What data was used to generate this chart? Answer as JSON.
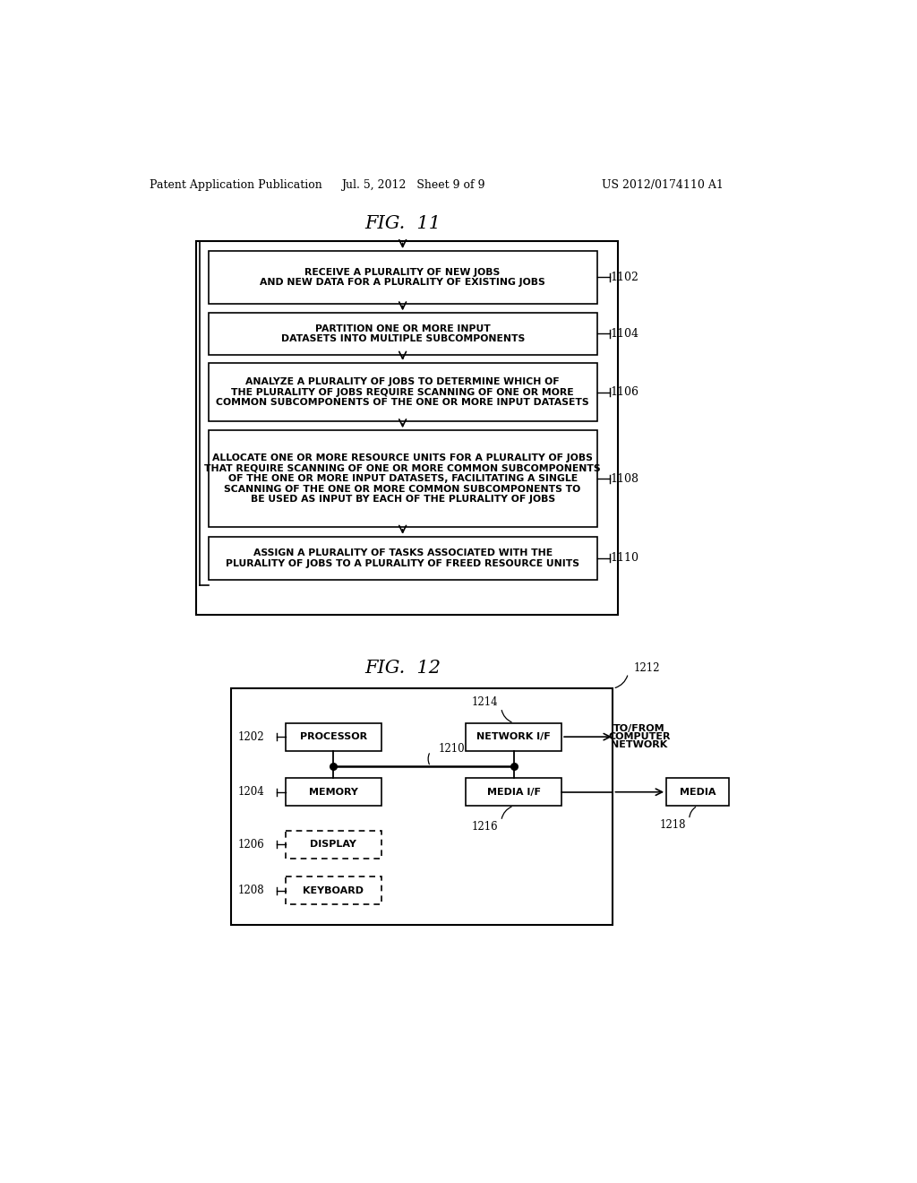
{
  "bg_color": "#ffffff",
  "header_left": "Patent Application Publication",
  "header_mid": "Jul. 5, 2012   Sheet 9 of 9",
  "header_right": "US 2012/0174110 A1",
  "fig11_title": "FIG.  11",
  "fig12_title": "FIG.  12",
  "box_labels": [
    "RECEIVE A PLURALITY OF NEW JOBS\nAND NEW DATA FOR A PLURALITY OF EXISTING JOBS",
    "PARTITION ONE OR MORE INPUT\nDATASETS INTO MULTIPLE SUBCOMPONENTS",
    "ANALYZE A PLURALITY OF JOBS TO DETERMINE WHICH OF\nTHE PLURALITY OF JOBS REQUIRE SCANNING OF ONE OR MORE\nCOMMON SUBCOMPONENTS OF THE ONE OR MORE INPUT DATASETS",
    "ALLOCATE ONE OR MORE RESOURCE UNITS FOR A PLURALITY OF JOBS\nTHAT REQUIRE SCANNING OF ONE OR MORE COMMON SUBCOMPONENTS\nOF THE ONE OR MORE INPUT DATASETS, FACILITATING A SINGLE\nSCANNING OF THE ONE OR MORE COMMON SUBCOMPONENTS TO\nBE USED AS INPUT BY EACH OF THE PLURALITY OF JOBS",
    "ASSIGN A PLURALITY OF TASKS ASSOCIATED WITH THE\nPLURALITY OF JOBS TO A PLURALITY OF FREED RESOURCE UNITS"
  ],
  "box_refs": [
    "1102",
    "1104",
    "1106",
    "1108",
    "1110"
  ]
}
